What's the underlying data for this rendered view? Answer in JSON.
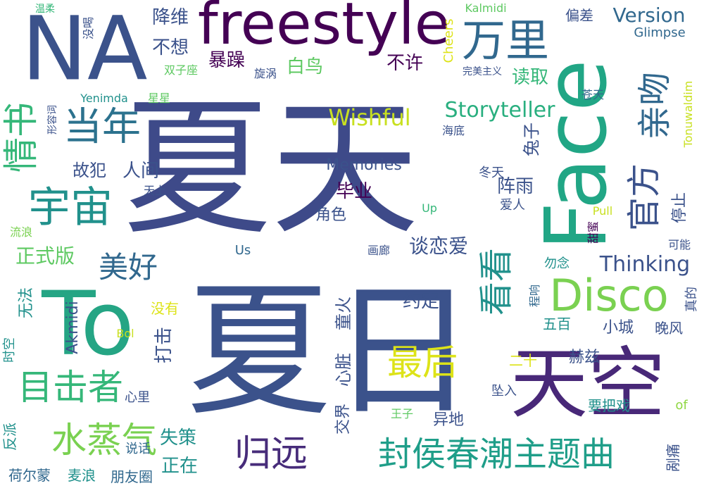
{
  "palette": {
    "dark_purple": "#440154",
    "indigo": "#3b528b",
    "slate_blue": "#31688e",
    "teal": "#21918c",
    "sea_green": "#35b779",
    "light_green": "#5ec962",
    "yellow_green": "#90d743",
    "yellow": "#c8e020"
  },
  "words": [
    {
      "text": "夏天"
    },
    {
      "text": "夏日"
    },
    {
      "text": "NA"
    },
    {
      "text": "To"
    },
    {
      "text": "Face"
    },
    {
      "text": "freestyle"
    },
    {
      "text": "天空"
    },
    {
      "text": "宇宙"
    },
    {
      "text": "当年"
    },
    {
      "text": "情书"
    },
    {
      "text": "万里"
    },
    {
      "text": "亲吻"
    },
    {
      "text": "官方"
    },
    {
      "text": "Disco"
    },
    {
      "text": "看看"
    },
    {
      "text": "最后"
    },
    {
      "text": "水蒸气"
    },
    {
      "text": "目击者"
    },
    {
      "text": "归远"
    },
    {
      "text": "封侯春潮主题曲"
    },
    {
      "text": "美好"
    },
    {
      "text": "Storyteller"
    },
    {
      "text": "Wishful"
    },
    {
      "text": "Version"
    },
    {
      "text": "Thinking"
    },
    {
      "text": "Memories"
    },
    {
      "text": "暴躁"
    },
    {
      "text": "白鸟"
    },
    {
      "text": "降维"
    },
    {
      "text": "不想"
    },
    {
      "text": "不许"
    },
    {
      "text": "读取"
    },
    {
      "text": "毕业"
    },
    {
      "text": "故犯"
    },
    {
      "text": "人间"
    },
    {
      "text": "阵雨"
    },
    {
      "text": "兔子"
    },
    {
      "text": "谈恋爱"
    },
    {
      "text": "约定"
    },
    {
      "text": "心脏"
    },
    {
      "text": "童火"
    },
    {
      "text": "打击"
    },
    {
      "text": "Akmidi"
    },
    {
      "text": "正式版"
    },
    {
      "text": "失策"
    },
    {
      "text": "正在"
    },
    {
      "text": "朋友圈"
    },
    {
      "text": "荷尔蒙"
    },
    {
      "text": "麦浪"
    },
    {
      "text": "反派"
    },
    {
      "text": "说话"
    },
    {
      "text": "王子"
    },
    {
      "text": "异地"
    },
    {
      "text": "交界"
    },
    {
      "text": "要把戏"
    },
    {
      "text": "坠入"
    },
    {
      "text": "赫兹"
    },
    {
      "text": "小城"
    },
    {
      "text": "晚风"
    },
    {
      "text": "五百"
    },
    {
      "text": "二十"
    },
    {
      "text": "勿念"
    },
    {
      "text": "程响"
    },
    {
      "text": "真的"
    },
    {
      "text": "Yenimda"
    },
    {
      "text": "Glimpse"
    },
    {
      "text": "Tonuwaldim"
    },
    {
      "text": "Kalmidi"
    },
    {
      "text": "Cheers"
    },
    {
      "text": "完美主义"
    },
    {
      "text": "偏差"
    },
    {
      "text": "苍天"
    },
    {
      "text": "海底"
    },
    {
      "text": "冬天"
    },
    {
      "text": "爱人"
    },
    {
      "text": "角色"
    },
    {
      "text": "停止"
    },
    {
      "text": "可能"
    },
    {
      "text": "甜蜜"
    },
    {
      "text": "Pull"
    },
    {
      "text": "Up"
    },
    {
      "text": "Us"
    },
    {
      "text": "画廊"
    },
    {
      "text": "没有"
    },
    {
      "text": "Bol"
    },
    {
      "text": "时空"
    },
    {
      "text": "无法"
    },
    {
      "text": "心里"
    },
    {
      "text": "流浪"
    },
    {
      "text": "天上"
    },
    {
      "text": "形容词"
    },
    {
      "text": "星星"
    },
    {
      "text": "温柔"
    },
    {
      "text": "没喝"
    },
    {
      "text": "双子座"
    },
    {
      "text": "旋涡"
    },
    {
      "text": "剐痛"
    },
    {
      "text": "of"
    }
  ]
}
